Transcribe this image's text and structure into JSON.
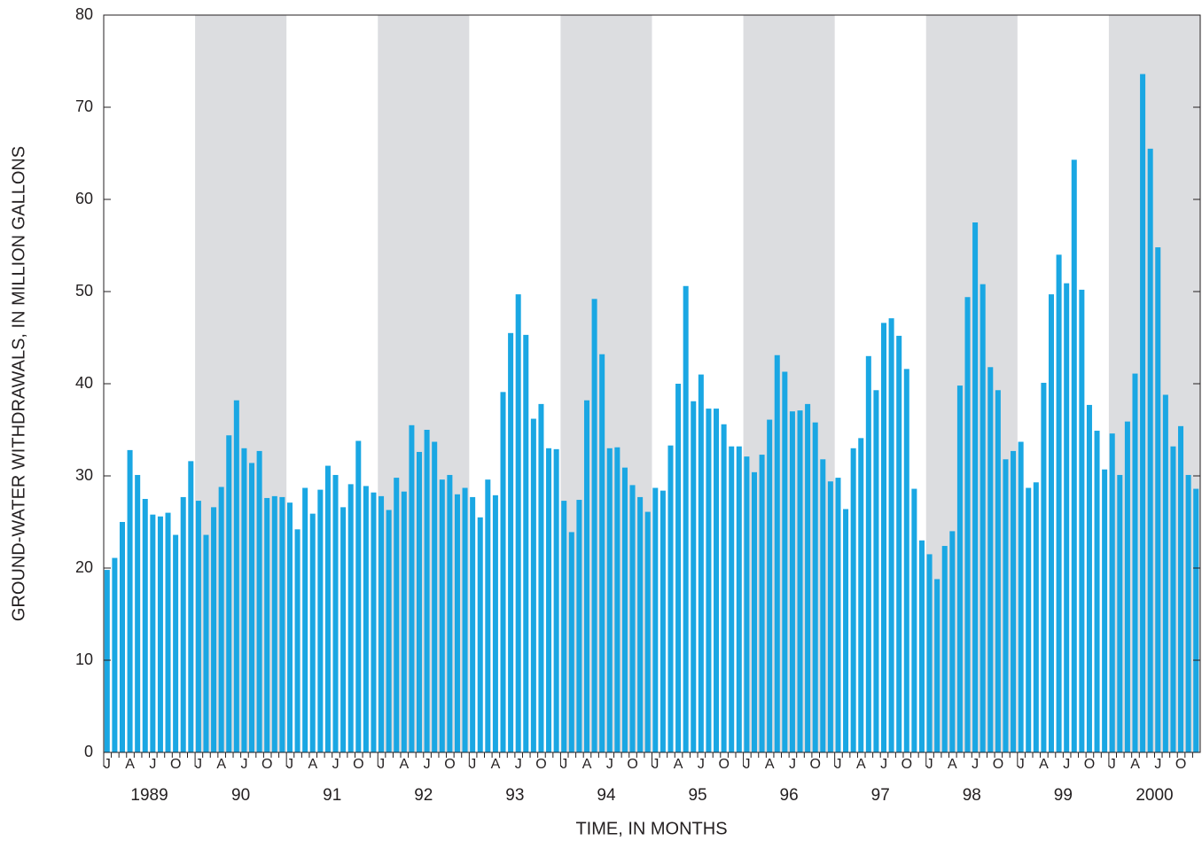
{
  "chart_data": {
    "type": "bar",
    "y_label": "GROUND-WATER WITHDRAWALS, IN MILLION GALLONS",
    "x_label": "TIME, IN MONTHS",
    "categories": [
      "J",
      null,
      null,
      "A",
      null,
      null,
      "J",
      null,
      null,
      "O",
      null,
      null,
      "J",
      null,
      null,
      "A",
      null,
      null,
      "J",
      null,
      null,
      "O",
      null,
      null,
      "J",
      null,
      null,
      "A",
      null,
      null,
      "J",
      null,
      null,
      "O",
      null,
      null,
      "J",
      null,
      null,
      "A",
      null,
      null,
      "J",
      null,
      null,
      "O",
      null,
      null,
      "J",
      null,
      null,
      "A",
      null,
      null,
      "J",
      null,
      null,
      "O",
      null,
      null,
      "J",
      null,
      null,
      "A",
      null,
      null,
      "J",
      null,
      null,
      "O",
      null,
      null,
      "J",
      null,
      null,
      "A",
      null,
      null,
      "J",
      null,
      null,
      "O",
      null,
      null,
      "J",
      null,
      null,
      "A",
      null,
      null,
      "J",
      null,
      null,
      "O",
      null,
      null,
      "J",
      null,
      null,
      "A",
      null,
      null,
      "J",
      null,
      null,
      "O",
      null,
      null,
      "J",
      null,
      null,
      "A",
      null,
      null,
      "J",
      null,
      null,
      "O",
      null,
      null,
      "J",
      null,
      null,
      "A",
      null,
      null,
      "J",
      null,
      null,
      "O",
      null,
      null,
      "J",
      null,
      null,
      "A",
      null,
      null,
      "J",
      null,
      null,
      "O",
      null,
      null
    ],
    "years": [
      "1989",
      "90",
      "91",
      "92",
      "93",
      "94",
      "95",
      "96",
      "97",
      "98",
      "99",
      "2000"
    ],
    "values": [
      19.8,
      21.1,
      25.0,
      32.8,
      30.1,
      27.5,
      25.8,
      25.6,
      26.0,
      23.6,
      27.7,
      31.6,
      27.3,
      23.6,
      26.6,
      28.8,
      34.4,
      38.2,
      33.0,
      31.4,
      32.7,
      27.6,
      27.8,
      27.7,
      27.1,
      24.2,
      28.7,
      25.9,
      28.5,
      31.1,
      30.1,
      26.6,
      29.1,
      33.8,
      28.9,
      28.2,
      27.8,
      26.3,
      29.8,
      28.3,
      35.5,
      32.6,
      35.0,
      33.7,
      29.6,
      30.1,
      28.0,
      28.7,
      27.7,
      25.5,
      29.6,
      27.9,
      39.1,
      45.5,
      49.7,
      45.3,
      36.2,
      37.8,
      33.0,
      32.9,
      27.3,
      23.9,
      27.4,
      38.2,
      49.2,
      43.2,
      33.0,
      33.1,
      30.9,
      29.0,
      27.7,
      26.1,
      28.7,
      28.4,
      33.3,
      40.0,
      50.6,
      38.1,
      41.0,
      37.3,
      37.3,
      35.6,
      33.2,
      33.2,
      32.1,
      30.4,
      32.3,
      36.1,
      43.1,
      41.3,
      37.0,
      37.1,
      37.8,
      35.8,
      31.8,
      29.4,
      29.8,
      26.4,
      33.0,
      34.1,
      43.0,
      39.3,
      46.6,
      47.1,
      45.2,
      41.6,
      28.6,
      23.0,
      21.5,
      18.8,
      22.4,
      24.0,
      39.8,
      49.4,
      57.5,
      50.8,
      41.8,
      39.3,
      31.8,
      32.7,
      33.7,
      28.7,
      29.3,
      40.1,
      49.7,
      54.0,
      50.9,
      64.3,
      50.2,
      37.7,
      34.9,
      30.7,
      34.6,
      30.1,
      35.9,
      41.1,
      73.6,
      65.5,
      54.8,
      38.8,
      33.2,
      35.4,
      30.1,
      28.6
    ],
    "color": "#1aa7e3",
    "band_color": "#dcdde0",
    "ylim": [
      0,
      80
    ],
    "yticks": [
      0,
      10,
      20,
      30,
      40,
      50,
      60,
      70,
      80
    ]
  }
}
